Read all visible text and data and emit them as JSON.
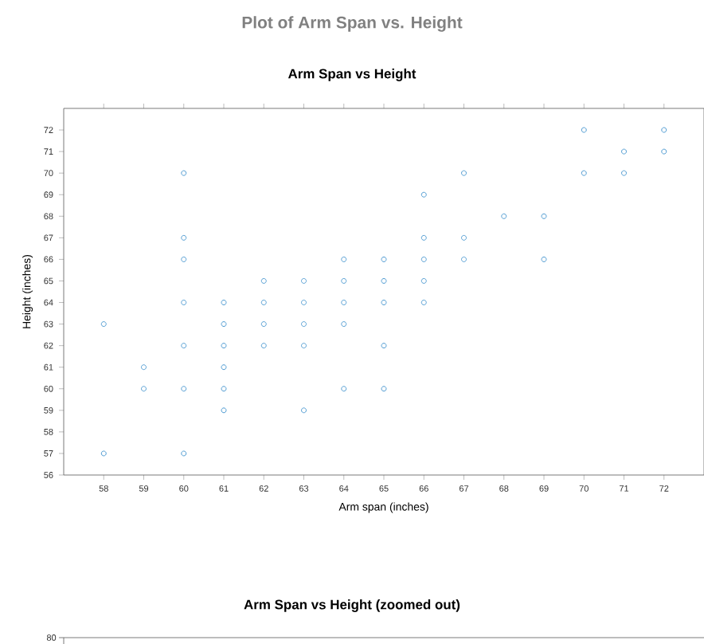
{
  "chart_data": [
    {
      "type": "scatter",
      "title": "Plot of Arm Span vs. Height",
      "subtitle": "Arm Span vs Height",
      "xlabel": "Arm span (inches)",
      "ylabel": "Height (inches)",
      "marker": "circle",
      "series": [
        {
          "color": "#4f9bd1",
          "x": [
            58,
            58,
            59,
            59,
            60,
            60,
            60,
            60,
            60,
            60,
            60,
            61,
            61,
            61,
            61,
            61,
            61,
            62,
            62,
            62,
            62,
            63,
            63,
            63,
            63,
            63,
            64,
            64,
            64,
            64,
            64,
            65,
            65,
            65,
            65,
            65,
            66,
            66,
            66,
            66,
            66,
            67,
            67,
            67,
            68,
            69,
            69,
            70,
            70,
            71,
            71,
            72,
            72
          ],
          "values": [
            63,
            57,
            61,
            60,
            70,
            67,
            66,
            64,
            62,
            60,
            57,
            64,
            63,
            62,
            61,
            60,
            59,
            65,
            64,
            63,
            62,
            65,
            64,
            63,
            62,
            59,
            66,
            65,
            64,
            63,
            60,
            66,
            65,
            64,
            62,
            60,
            69,
            67,
            66,
            65,
            64,
            70,
            67,
            66,
            68,
            68,
            66,
            72,
            70,
            71,
            70,
            72,
            71
          ]
        }
      ],
      "xlim": [
        57,
        73
      ],
      "ylim": [
        56,
        73
      ],
      "xticks": [
        58,
        59,
        60,
        61,
        62,
        63,
        64,
        65,
        66,
        67,
        68,
        69,
        70,
        71,
        72
      ],
      "yticks": [
        56,
        57,
        58,
        59,
        60,
        61,
        62,
        63,
        64,
        65,
        66,
        67,
        68,
        69,
        70,
        71,
        72
      ]
    },
    {
      "type": "other",
      "title": "Arm Span vs Height (zoomed out)",
      "annotations": [
        "80"
      ]
    }
  ]
}
